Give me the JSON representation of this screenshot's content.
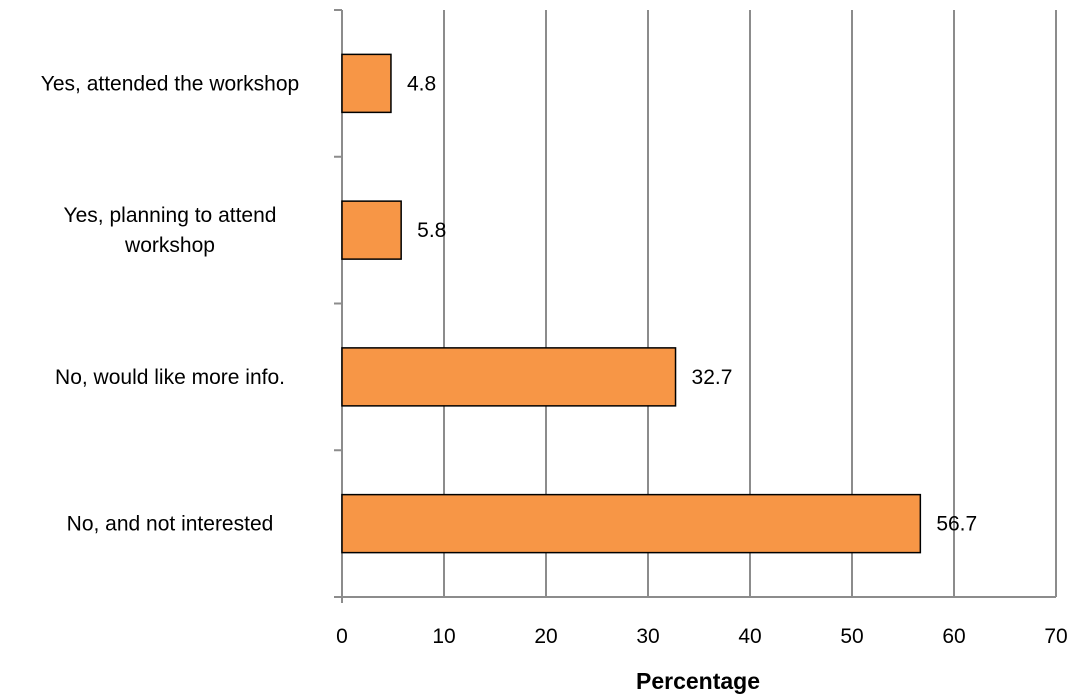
{
  "chart_data": {
    "type": "bar",
    "orientation": "horizontal",
    "categories": [
      [
        "Yes, attended the workshop"
      ],
      [
        "Yes, planning to attend",
        "workshop"
      ],
      [
        "No, would like more info."
      ],
      [
        "No, and not interested"
      ]
    ],
    "values": [
      4.8,
      5.8,
      32.7,
      56.7
    ],
    "data_labels": [
      "4.8",
      "5.8",
      "32.7",
      "56.7"
    ],
    "xlabel": "Percentage",
    "ylabel": "",
    "title": "",
    "xlim": [
      0,
      70
    ],
    "xticks": [
      0,
      10,
      20,
      30,
      40,
      50,
      60,
      70
    ],
    "grid": "vertical",
    "legend": "none",
    "colors": {
      "bar_fill": "#f79646",
      "bar_stroke": "#000000",
      "grid": "#8c8c8c",
      "axis": "#8c8c8c"
    }
  }
}
